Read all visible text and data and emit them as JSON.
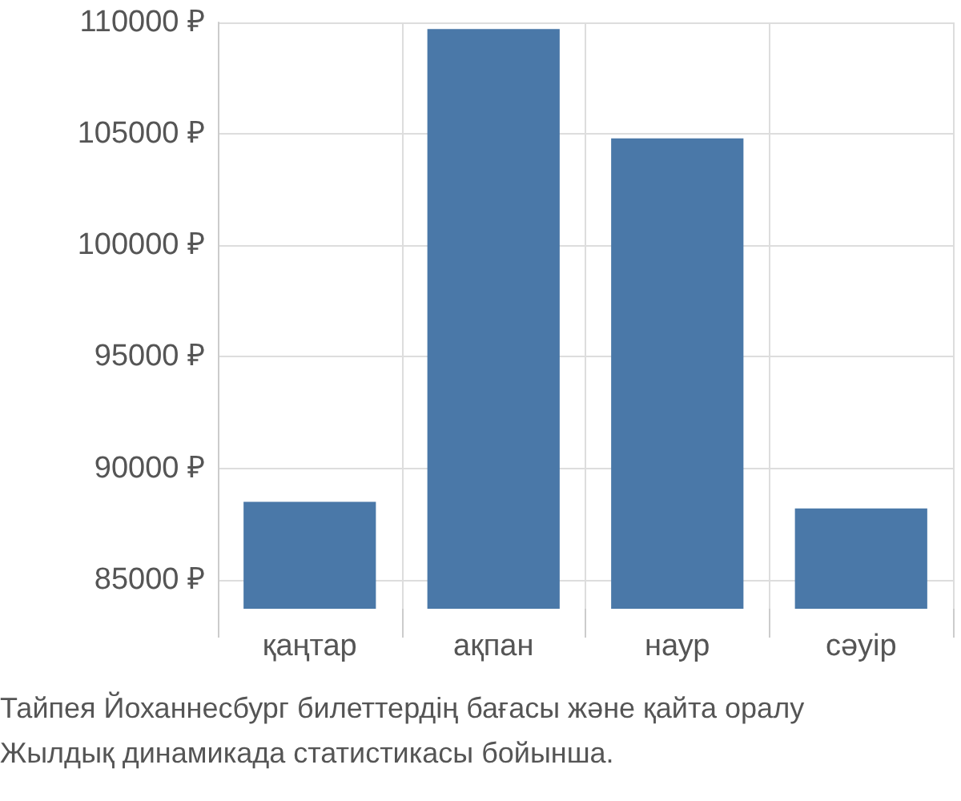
{
  "chart_data": {
    "type": "bar",
    "categories": [
      "қаңтар",
      "ақпан",
      "наур",
      "сәуір"
    ],
    "values": [
      88500,
      109700,
      104800,
      88200
    ],
    "color": "#4a78a8",
    "ylim": [
      83700,
      110000
    ],
    "yticks": [
      {
        "value": 85000,
        "label": "85000 ₽"
      },
      {
        "value": 90000,
        "label": "90000 ₽"
      },
      {
        "value": 95000,
        "label": "95000 ₽"
      },
      {
        "value": 100000,
        "label": "100000 ₽"
      },
      {
        "value": 105000,
        "label": "105000 ₽"
      },
      {
        "value": 110000,
        "label": "110000 ₽"
      }
    ],
    "grid": true,
    "annotations": [
      "Тайпея Йоханнесбург билеттердің бағасы және қайта оралу",
      "Жылдық динамикада статистикасы бойынша."
    ]
  }
}
